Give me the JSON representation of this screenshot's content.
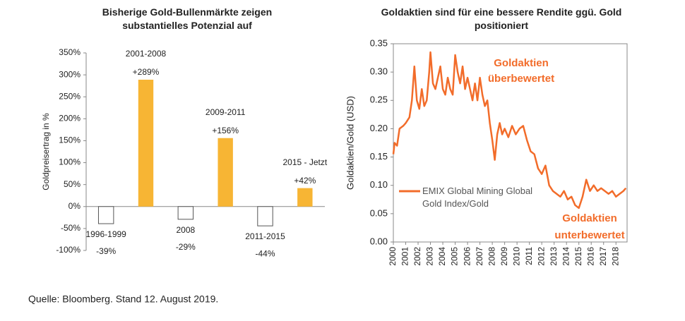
{
  "chart_data": [
    {
      "type": "bar",
      "title": "Bisherige Gold-Bullenmärkte zeigen substantielles Potenzial auf",
      "ylabel": "Goldpreisertrag in %",
      "categories": [
        "1996-1999",
        "2001-2008",
        "2008",
        "2009-2011",
        "2011-2015",
        "2015 - Jetzt"
      ],
      "values": [
        -39,
        289,
        -29,
        156,
        -44,
        42
      ],
      "value_labels": [
        "-39%",
        "+289%",
        "-29%",
        "+156%",
        "-44%",
        "+42%"
      ],
      "color": "#f7b534",
      "negative_color": "#ffffff",
      "ylim": [
        -100,
        350
      ],
      "yticks": [
        {
          "value": -100,
          "label": "-100%"
        },
        {
          "value": -50,
          "label": "-50%"
        },
        {
          "value": 0,
          "label": "0%"
        },
        {
          "value": 50,
          "label": "50%"
        },
        {
          "value": 100,
          "label": "100%"
        },
        {
          "value": 150,
          "label": "150%"
        },
        {
          "value": 200,
          "label": "200%"
        },
        {
          "value": 250,
          "label": "250%"
        },
        {
          "value": 300,
          "label": "300%"
        },
        {
          "value": 350,
          "label": "350%"
        }
      ]
    },
    {
      "type": "line",
      "title": "Goldaktien sind für eine bessere Rendite ggü. Gold positioniert",
      "ylabel": "Goldaktien/Gold (USD)",
      "x": [
        2000.0,
        2000.1,
        2000.3,
        2000.5,
        2000.8,
        2001.0,
        2001.3,
        2001.5,
        2001.7,
        2001.9,
        2002.1,
        2002.3,
        2002.5,
        2002.7,
        2002.9,
        2003.0,
        2003.2,
        2003.4,
        2003.6,
        2003.8,
        2004.0,
        2004.2,
        2004.4,
        2004.6,
        2004.8,
        2005.0,
        2005.2,
        2005.4,
        2005.6,
        2005.8,
        2006.0,
        2006.2,
        2006.4,
        2006.6,
        2006.8,
        2007.0,
        2007.2,
        2007.4,
        2007.6,
        2007.8,
        2008.0,
        2008.2,
        2008.4,
        2008.6,
        2008.8,
        2009.0,
        2009.3,
        2009.6,
        2009.9,
        2010.2,
        2010.5,
        2010.8,
        2011.1,
        2011.4,
        2011.7,
        2012.0,
        2012.3,
        2012.6,
        2012.9,
        2013.2,
        2013.5,
        2013.8,
        2014.1,
        2014.4,
        2014.7,
        2015.0,
        2015.3,
        2015.6,
        2015.9,
        2016.2,
        2016.5,
        2016.8,
        2017.1,
        2017.4,
        2017.7,
        2018.0,
        2018.3,
        2018.6,
        2018.8
      ],
      "series": [
        {
          "name": "EMIX Global Mining Global Gold Index/Gold",
          "color": "#f26c2a",
          "values": [
            0.155,
            0.175,
            0.17,
            0.2,
            0.205,
            0.21,
            0.22,
            0.25,
            0.31,
            0.25,
            0.235,
            0.27,
            0.24,
            0.25,
            0.3,
            0.335,
            0.28,
            0.27,
            0.29,
            0.31,
            0.27,
            0.26,
            0.29,
            0.27,
            0.26,
            0.33,
            0.3,
            0.28,
            0.31,
            0.27,
            0.29,
            0.27,
            0.25,
            0.28,
            0.25,
            0.29,
            0.26,
            0.24,
            0.25,
            0.21,
            0.18,
            0.145,
            0.19,
            0.21,
            0.19,
            0.2,
            0.185,
            0.205,
            0.19,
            0.2,
            0.205,
            0.18,
            0.16,
            0.155,
            0.13,
            0.12,
            0.135,
            0.1,
            0.09,
            0.085,
            0.08,
            0.09,
            0.075,
            0.08,
            0.065,
            0.06,
            0.08,
            0.11,
            0.09,
            0.1,
            0.09,
            0.095,
            0.09,
            0.085,
            0.09,
            0.08,
            0.085,
            0.09,
            0.095
          ]
        }
      ],
      "xlim": [
        2000,
        2018.9
      ],
      "xticks": [
        2000,
        2001,
        2002,
        2003,
        2004,
        2005,
        2006,
        2007,
        2008,
        2009,
        2010,
        2011,
        2012,
        2013,
        2014,
        2015,
        2016,
        2017,
        2018
      ],
      "ylim": [
        0,
        0.35
      ],
      "yticks": [
        {
          "value": 0,
          "label": "0.00"
        },
        {
          "value": 0.05,
          "label": "0.05"
        },
        {
          "value": 0.1,
          "label": "0.10"
        },
        {
          "value": 0.15,
          "label": "0.15"
        },
        {
          "value": 0.2,
          "label": "0.20"
        },
        {
          "value": 0.25,
          "label": "0.25"
        },
        {
          "value": 0.3,
          "label": "0.30"
        },
        {
          "value": 0.35,
          "label": "0.35"
        }
      ],
      "annotations": [
        "Goldaktien",
        "überbewertet",
        "Goldaktien",
        "unterbewertet"
      ],
      "annotation_color": "#f26c2a"
    }
  ],
  "source": "Quelle: Bloomberg. Stand 12. August 2019."
}
